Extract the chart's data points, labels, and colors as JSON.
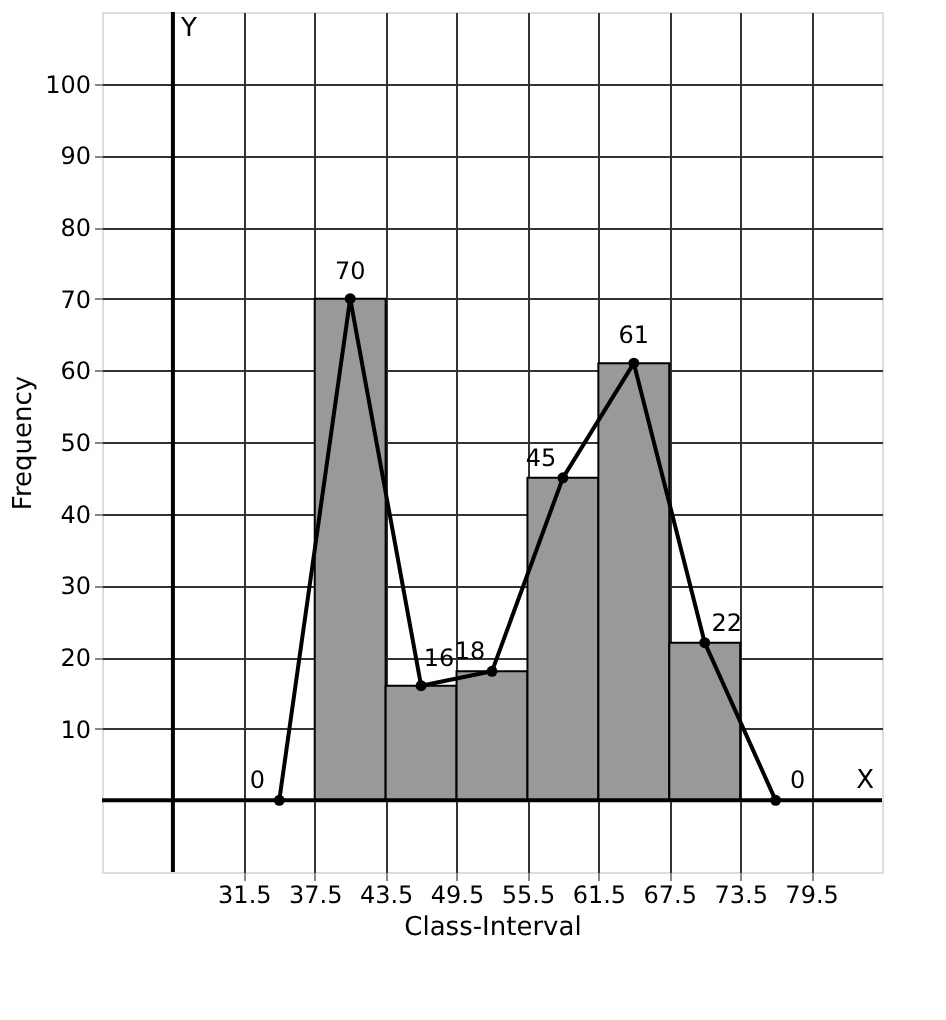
{
  "chart_data": {
    "type": "histogram",
    "xlabel": "Class-Interval",
    "ylabel": "Frequency",
    "xlim": [
      19.5,
      85.5
    ],
    "ylim": [
      -10,
      110
    ],
    "xticks": [
      31.5,
      37.5,
      43.5,
      49.5,
      55.5,
      61.5,
      67.5,
      73.5,
      79.5
    ],
    "yticks": [
      10,
      20,
      30,
      40,
      50,
      60,
      70,
      80,
      90,
      100
    ],
    "grid": true,
    "bins": [
      37.5,
      43.5,
      49.5,
      55.5,
      61.5,
      67.5,
      73.5
    ],
    "values": [
      70,
      16,
      18,
      45,
      61,
      22
    ],
    "color": "#999999",
    "series": [
      {
        "type": "line",
        "x": [
          34.5,
          40.5,
          46.5,
          52.5,
          58.5,
          64.5,
          70.5,
          76.5
        ],
        "values": [
          0,
          70,
          16,
          18,
          45,
          61,
          22,
          0
        ],
        "value_labels": [
          "0",
          "70",
          "16",
          "18",
          "45",
          "61",
          "22",
          "0"
        ],
        "color": "#000000",
        "marker": "circle"
      }
    ],
    "ref_lines": [
      {
        "axis": "x",
        "value": 25.5,
        "color": "#000000"
      },
      {
        "axis": "y",
        "value": 0,
        "color": "#000000"
      }
    ],
    "annotations": [
      "Y",
      "X"
    ]
  }
}
